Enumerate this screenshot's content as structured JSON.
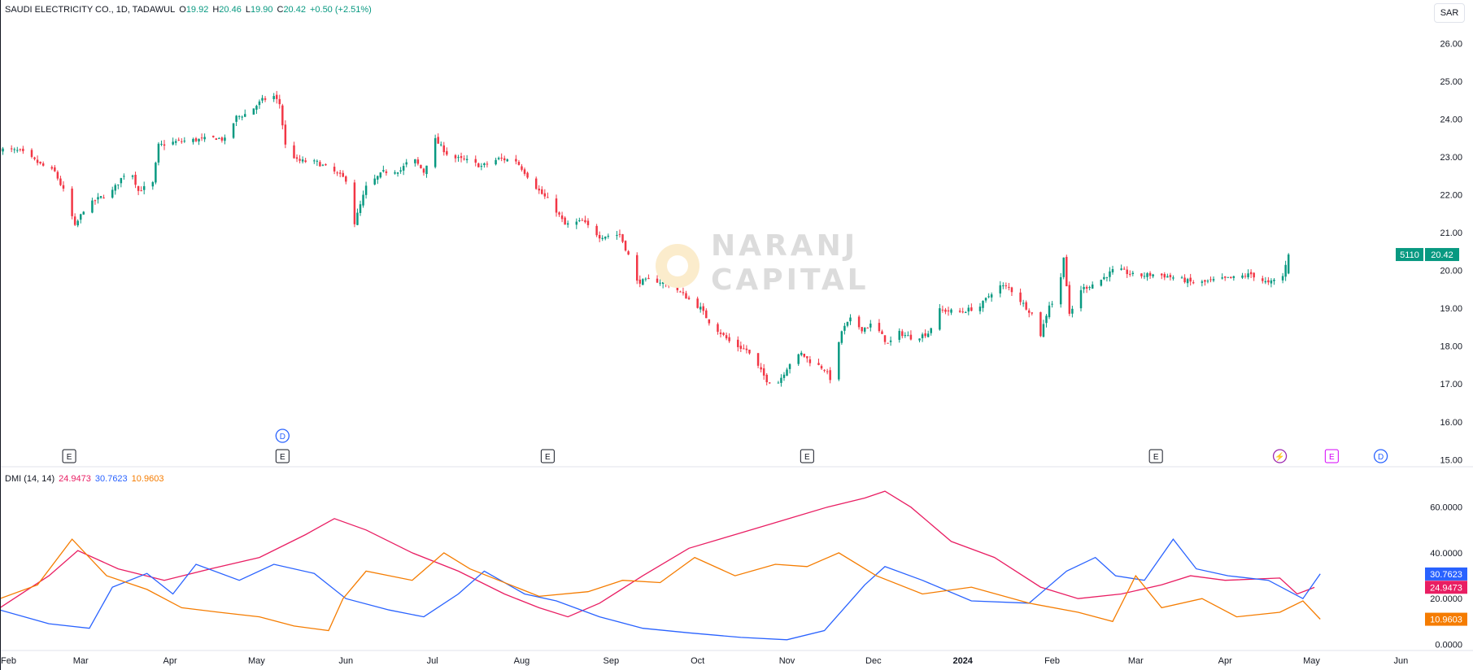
{
  "header": {
    "symbol_name": "SAUDI ELECTRICITY CO., 1D, TADAWUL",
    "o_label": "O",
    "o_value": "19.92",
    "h_label": "H",
    "h_value": "20.46",
    "l_label": "L",
    "l_value": "19.90",
    "c_label": "C",
    "c_value": "20.42",
    "change": "+0.50 (+2.51%)"
  },
  "currency": "SAR",
  "price_badge": {
    "symbol": "5110",
    "price": "20.42"
  },
  "watermark": {
    "line1": "NARANJ",
    "line2": "CAPITAL"
  },
  "indicator_legend": {
    "name": "DMI (14, 14)",
    "adx": "24.9473",
    "plus_di": "30.7623",
    "minus_di": "10.9603"
  },
  "colors": {
    "up": "#089981",
    "down": "#f23645",
    "adx": "#e91e63",
    "plus_di": "#2962ff",
    "minus_di": "#f57c00",
    "dividend": "#2962ff",
    "earnings": "#131722",
    "earnings_future": "#d500f9",
    "split": "#9c27b0"
  },
  "event_markers": [
    {
      "label": "E",
      "type": "earnings",
      "date": "2023-02-25"
    },
    {
      "label": "E",
      "type": "earnings",
      "date": "2023-05-10"
    },
    {
      "label": "D",
      "type": "dividend",
      "date": "2023-05-10"
    },
    {
      "label": "E",
      "type": "earnings",
      "date": "2023-08-10"
    },
    {
      "label": "E",
      "type": "earnings",
      "date": "2023-11-08"
    },
    {
      "label": "E",
      "type": "earnings",
      "date": "2024-03-08"
    },
    {
      "label": "⚡",
      "type": "split",
      "date": "2024-04-20"
    },
    {
      "label": "E",
      "type": "earnings_future",
      "date": "2024-05-08"
    },
    {
      "label": "D",
      "type": "dividend",
      "date": "2024-05-25"
    }
  ],
  "chart_data": [
    {
      "type": "candlestick",
      "title": "SAUDI ELECTRICITY CO., 1D, TADAWUL",
      "y_axis": {
        "ticks": [
          "15.00",
          "16.00",
          "17.00",
          "18.00",
          "19.00",
          "20.00",
          "21.00",
          "22.00",
          "23.00",
          "24.00",
          "25.00",
          "26.00"
        ],
        "range": [
          14.9,
          26.5
        ]
      },
      "x_axis": {
        "labels": [
          "Feb",
          "Mar",
          "Apr",
          "May",
          "Jun",
          "Jul",
          "Aug",
          "Sep",
          "Oct",
          "Nov",
          "Dec",
          "2024",
          "Feb",
          "Mar",
          "Apr",
          "May",
          "Jun"
        ],
        "dates": [
          "2023-02-01",
          "2023-03-01",
          "2023-04-01",
          "2023-05-01",
          "2023-06-01",
          "2023-07-01",
          "2023-08-01",
          "2023-09-01",
          "2023-10-01",
          "2023-11-01",
          "2023-12-01",
          "2024-01-01",
          "2024-02-01",
          "2024-03-01",
          "2024-04-01",
          "2024-05-01",
          "2024-06-01"
        ],
        "range": [
          "2023-02-01",
          "2024-06-26"
        ]
      },
      "close_anchors": [
        [
          "2023-02-01",
          23.2
        ],
        [
          "2023-02-08",
          23.15
        ],
        [
          "2023-02-15",
          22.8
        ],
        [
          "2023-02-20",
          22.6
        ],
        [
          "2023-02-24",
          21.95
        ],
        [
          "2023-02-27",
          21.15
        ],
        [
          "2023-03-02",
          21.6
        ],
        [
          "2023-03-06",
          21.85
        ],
        [
          "2023-03-12",
          22.1
        ],
        [
          "2023-03-18",
          22.75
        ],
        [
          "2023-03-21",
          22.1
        ],
        [
          "2023-03-26",
          22.3
        ],
        [
          "2023-03-28",
          23.3
        ],
        [
          "2023-04-03",
          23.4
        ],
        [
          "2023-04-10",
          23.45
        ],
        [
          "2023-04-17",
          23.5
        ],
        [
          "2023-04-20",
          23.45
        ],
        [
          "2023-04-24",
          24.05
        ],
        [
          "2023-04-28",
          24.15
        ],
        [
          "2023-05-03",
          24.5
        ],
        [
          "2023-05-07",
          24.6
        ],
        [
          "2023-05-09",
          24.4
        ],
        [
          "2023-05-11",
          23.3
        ],
        [
          "2023-05-15",
          22.9
        ],
        [
          "2023-05-22",
          22.85
        ],
        [
          "2023-05-28",
          22.6
        ],
        [
          "2023-06-01",
          22.4
        ],
        [
          "2023-06-04",
          21.25
        ],
        [
          "2023-06-08",
          22.2
        ],
        [
          "2023-06-14",
          22.6
        ],
        [
          "2023-06-20",
          22.65
        ],
        [
          "2023-06-24",
          23.0
        ],
        [
          "2023-06-28",
          22.6
        ],
        [
          "2023-07-02",
          23.45
        ],
        [
          "2023-07-07",
          23.0
        ],
        [
          "2023-07-13",
          22.9
        ],
        [
          "2023-07-18",
          22.75
        ],
        [
          "2023-07-24",
          22.95
        ],
        [
          "2023-07-30",
          22.9
        ],
        [
          "2023-08-03",
          22.5
        ],
        [
          "2023-08-07",
          22.1
        ],
        [
          "2023-08-12",
          21.7
        ],
        [
          "2023-08-16",
          21.2
        ],
        [
          "2023-08-22",
          21.3
        ],
        [
          "2023-08-28",
          20.9
        ],
        [
          "2023-09-04",
          20.95
        ],
        [
          "2023-09-07",
          20.4
        ],
        [
          "2023-09-10",
          19.7
        ],
        [
          "2023-09-16",
          19.75
        ],
        [
          "2023-09-22",
          19.6
        ],
        [
          "2023-09-27",
          19.3
        ],
        [
          "2023-10-02",
          19.0
        ],
        [
          "2023-10-05",
          18.65
        ],
        [
          "2023-10-09",
          18.35
        ],
        [
          "2023-10-13",
          18.05
        ],
        [
          "2023-10-18",
          17.9
        ],
        [
          "2023-10-22",
          17.45
        ],
        [
          "2023-10-25",
          17.1
        ],
        [
          "2023-10-29",
          17.05
        ],
        [
          "2023-11-02",
          17.55
        ],
        [
          "2023-11-06",
          17.8
        ],
        [
          "2023-11-09",
          17.6
        ],
        [
          "2023-11-14",
          17.4
        ],
        [
          "2023-11-16",
          17.15
        ],
        [
          "2023-11-18",
          17.7
        ],
        [
          "2023-11-20",
          18.4
        ],
        [
          "2023-11-23",
          18.7
        ],
        [
          "2023-11-27",
          18.45
        ],
        [
          "2023-12-01",
          18.6
        ],
        [
          "2023-12-06",
          18.05
        ],
        [
          "2023-12-10",
          18.35
        ],
        [
          "2023-12-15",
          18.2
        ],
        [
          "2023-12-20",
          18.35
        ],
        [
          "2023-12-24",
          18.95
        ],
        [
          "2023-12-31",
          18.9
        ],
        [
          "2024-01-07",
          19.05
        ],
        [
          "2024-01-13",
          19.6
        ],
        [
          "2024-01-17",
          19.55
        ],
        [
          "2024-01-21",
          19.2
        ],
        [
          "2024-01-25",
          18.85
        ],
        [
          "2024-01-28",
          18.3
        ],
        [
          "2024-01-31",
          19.1
        ],
        [
          "2024-02-03",
          19.2
        ],
        [
          "2024-02-05",
          20.4
        ],
        [
          "2024-02-07",
          18.8
        ],
        [
          "2024-02-11",
          19.5
        ],
        [
          "2024-02-17",
          19.7
        ],
        [
          "2024-02-23",
          20.05
        ],
        [
          "2024-03-01",
          19.85
        ],
        [
          "2024-03-08",
          19.9
        ],
        [
          "2024-03-15",
          19.8
        ],
        [
          "2024-03-22",
          19.65
        ],
        [
          "2024-03-29",
          19.75
        ],
        [
          "2024-04-04",
          19.8
        ],
        [
          "2024-04-10",
          19.9
        ],
        [
          "2024-04-16",
          19.65
        ],
        [
          "2024-04-21",
          19.85
        ],
        [
          "2024-04-23",
          20.42
        ]
      ],
      "last_bar": {
        "date": "2024-04-23",
        "open": 19.92,
        "high": 20.46,
        "low": 19.9,
        "close": 20.42
      }
    },
    {
      "type": "line",
      "title": "DMI (14, 14)",
      "y_axis": {
        "ticks": [
          "0.0000",
          "20.0000",
          "40.0000",
          "60.0000"
        ],
        "range": [
          -2,
          72
        ]
      },
      "series": [
        {
          "name": "ADX",
          "last": 24.9473,
          "points": [
            [
              "2023-02-01",
              16
            ],
            [
              "2023-02-18",
              30
            ],
            [
              "2023-02-28",
              41
            ],
            [
              "2023-03-14",
              33
            ],
            [
              "2023-03-30",
              28
            ],
            [
              "2023-04-15",
              33
            ],
            [
              "2023-05-02",
              38
            ],
            [
              "2023-05-18",
              48
            ],
            [
              "2023-05-28",
              55
            ],
            [
              "2023-06-08",
              50
            ],
            [
              "2023-06-24",
              40
            ],
            [
              "2023-07-10",
              32
            ],
            [
              "2023-07-26",
              22
            ],
            [
              "2023-08-07",
              16
            ],
            [
              "2023-08-17",
              12
            ],
            [
              "2023-08-28",
              18
            ],
            [
              "2023-09-12",
              30
            ],
            [
              "2023-09-28",
              42
            ],
            [
              "2023-10-14",
              48
            ],
            [
              "2023-10-30",
              54
            ],
            [
              "2023-11-15",
              60
            ],
            [
              "2023-11-28",
              64
            ],
            [
              "2023-12-05",
              67
            ],
            [
              "2023-12-14",
              60
            ],
            [
              "2023-12-28",
              45
            ],
            [
              "2024-01-12",
              38
            ],
            [
              "2024-01-28",
              25
            ],
            [
              "2024-02-10",
              20
            ],
            [
              "2024-02-25",
              22
            ],
            [
              "2024-03-10",
              26
            ],
            [
              "2024-03-20",
              30
            ],
            [
              "2024-04-01",
              28
            ],
            [
              "2024-04-20",
              29
            ],
            [
              "2024-04-26",
              22
            ],
            [
              "2024-05-02",
              24.9
            ]
          ]
        },
        {
          "name": "+DI",
          "last": 30.7623,
          "points": [
            [
              "2023-02-01",
              15
            ],
            [
              "2023-02-18",
              9
            ],
            [
              "2023-03-04",
              7
            ],
            [
              "2023-03-12",
              25
            ],
            [
              "2023-03-24",
              31
            ],
            [
              "2023-04-02",
              22
            ],
            [
              "2023-04-10",
              35
            ],
            [
              "2023-04-25",
              28
            ],
            [
              "2023-05-07",
              35
            ],
            [
              "2023-05-21",
              31
            ],
            [
              "2023-06-01",
              20
            ],
            [
              "2023-06-16",
              15
            ],
            [
              "2023-06-28",
              12
            ],
            [
              "2023-07-10",
              22
            ],
            [
              "2023-07-19",
              32
            ],
            [
              "2023-08-02",
              22
            ],
            [
              "2023-08-13",
              19
            ],
            [
              "2023-08-28",
              12
            ],
            [
              "2023-09-12",
              7
            ],
            [
              "2023-09-28",
              5
            ],
            [
              "2023-10-16",
              3
            ],
            [
              "2023-11-01",
              2
            ],
            [
              "2023-11-14",
              6
            ],
            [
              "2023-11-28",
              26
            ],
            [
              "2023-12-05",
              34
            ],
            [
              "2023-12-18",
              28
            ],
            [
              "2024-01-04",
              19
            ],
            [
              "2024-01-24",
              18
            ],
            [
              "2024-02-06",
              32
            ],
            [
              "2024-02-16",
              38
            ],
            [
              "2024-02-23",
              30
            ],
            [
              "2024-03-04",
              28
            ],
            [
              "2024-03-14",
              46
            ],
            [
              "2024-03-22",
              33
            ],
            [
              "2024-04-02",
              30
            ],
            [
              "2024-04-16",
              28
            ],
            [
              "2024-04-28",
              20
            ],
            [
              "2024-05-04",
              30.8
            ]
          ]
        },
        {
          "name": "-DI",
          "last": 10.9603,
          "points": [
            [
              "2023-02-01",
              20
            ],
            [
              "2023-02-14",
              26
            ],
            [
              "2023-02-26",
              46
            ],
            [
              "2023-03-10",
              30
            ],
            [
              "2023-03-24",
              24
            ],
            [
              "2023-04-05",
              16
            ],
            [
              "2023-04-18",
              14
            ],
            [
              "2023-05-02",
              12
            ],
            [
              "2023-05-14",
              8
            ],
            [
              "2023-05-26",
              6
            ],
            [
              "2023-05-31",
              20
            ],
            [
              "2023-06-08",
              32
            ],
            [
              "2023-06-24",
              28
            ],
            [
              "2023-07-05",
              40
            ],
            [
              "2023-07-14",
              33
            ],
            [
              "2023-07-28",
              26
            ],
            [
              "2023-08-07",
              21
            ],
            [
              "2023-08-24",
              23
            ],
            [
              "2023-09-05",
              28
            ],
            [
              "2023-09-18",
              27
            ],
            [
              "2023-09-30",
              38
            ],
            [
              "2023-10-14",
              30
            ],
            [
              "2023-10-28",
              35
            ],
            [
              "2023-11-08",
              34
            ],
            [
              "2023-11-19",
              40
            ],
            [
              "2023-12-02",
              30
            ],
            [
              "2023-12-18",
              22
            ],
            [
              "2024-01-04",
              25
            ],
            [
              "2024-01-24",
              18
            ],
            [
              "2024-02-10",
              14
            ],
            [
              "2024-02-22",
              10
            ],
            [
              "2024-03-01",
              30
            ],
            [
              "2024-03-10",
              16
            ],
            [
              "2024-03-24",
              20
            ],
            [
              "2024-04-05",
              12
            ],
            [
              "2024-04-20",
              14
            ],
            [
              "2024-04-28",
              19
            ],
            [
              "2024-05-04",
              11
            ]
          ]
        }
      ]
    }
  ]
}
